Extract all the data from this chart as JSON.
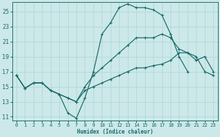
{
  "xlabel": "Humidex (Indice chaleur)",
  "xlim": [
    -0.5,
    23.5
  ],
  "ylim": [
    10.5,
    26.2
  ],
  "xticks": [
    0,
    1,
    2,
    3,
    4,
    5,
    6,
    7,
    8,
    9,
    10,
    11,
    12,
    13,
    14,
    15,
    16,
    17,
    18,
    19,
    20,
    21,
    22,
    23
  ],
  "yticks": [
    11,
    13,
    15,
    17,
    19,
    21,
    23,
    25
  ],
  "bg_color": "#cce8e8",
  "line_color": "#1a6b6b",
  "grid_color": "#b0d8d8",
  "lines": [
    {
      "x": [
        0,
        1,
        2,
        3,
        4,
        5,
        6,
        7,
        8,
        9,
        10,
        11,
        12,
        13,
        14,
        15,
        16,
        17,
        18,
        19,
        20
      ],
      "y": [
        16.5,
        14.8,
        15.5,
        15.5,
        14.5,
        14.0,
        11.5,
        10.8,
        13.5,
        17.0,
        22.0,
        23.5,
        25.5,
        26.0,
        25.5,
        25.5,
        25.2,
        24.5,
        22.0,
        19.0,
        17.0
      ]
    },
    {
      "x": [
        0,
        1,
        2,
        3,
        4,
        5,
        6,
        7,
        8,
        9,
        10,
        11,
        12,
        13,
        14,
        15,
        16,
        17,
        18,
        19,
        20,
        21,
        22,
        23
      ],
      "y": [
        16.5,
        14.8,
        15.5,
        15.5,
        14.5,
        14.0,
        13.5,
        13.0,
        15.0,
        16.5,
        17.5,
        18.5,
        19.5,
        20.5,
        21.5,
        21.5,
        21.5,
        22.0,
        21.5,
        20.0,
        19.5,
        18.5,
        19.0,
        17.0
      ]
    },
    {
      "x": [
        0,
        1,
        2,
        3,
        4,
        5,
        6,
        7,
        8,
        9,
        10,
        11,
        12,
        13,
        14,
        15,
        16,
        17,
        18,
        19,
        20,
        21,
        22,
        23
      ],
      "y": [
        16.5,
        14.8,
        15.5,
        15.5,
        14.5,
        14.0,
        13.5,
        13.0,
        14.5,
        15.0,
        15.5,
        16.0,
        16.5,
        17.0,
        17.5,
        17.5,
        17.8,
        18.0,
        18.5,
        19.5,
        19.5,
        19.0,
        17.0,
        16.5
      ]
    }
  ],
  "marker": "+",
  "markersize": 3.5,
  "linewidth": 0.9
}
